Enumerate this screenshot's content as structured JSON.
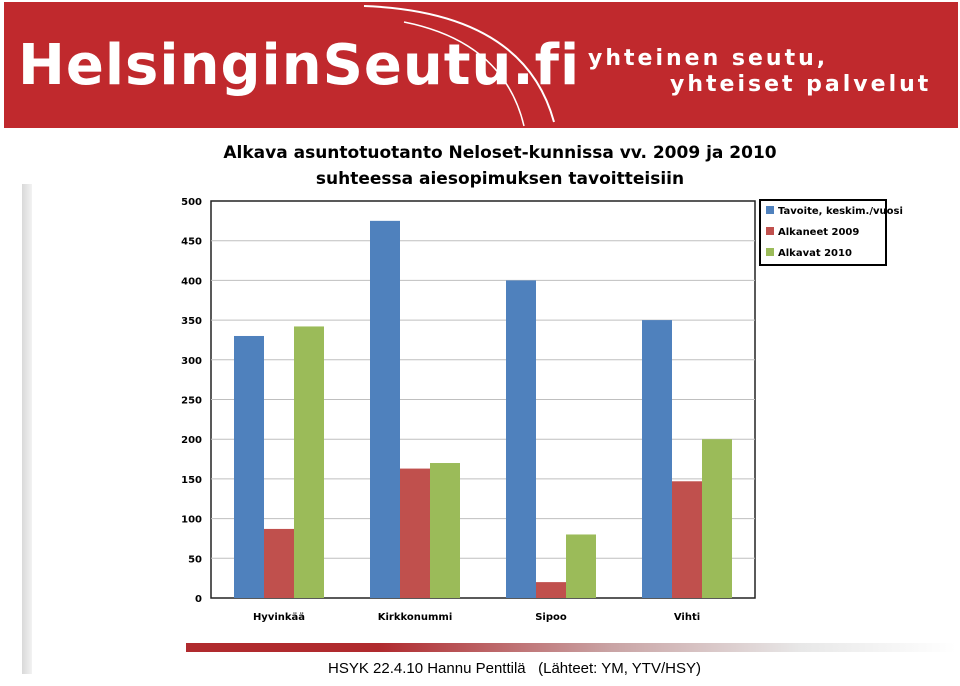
{
  "header": {
    "logo_text": "HelsinginSeutu.fi",
    "slogan_line1": "yhteinen seutu,",
    "slogan_line2": "yhteiset palvelut",
    "colors": {
      "banner": "#c0292d",
      "logo_text": "#ffffff"
    }
  },
  "footer": {
    "text": "HSYK 22.4.10 Hannu Penttilä   (Lähteet: YM, YTV/HSY)"
  },
  "chart_data": {
    "type": "bar",
    "title": "Alkava asuntotuotanto Neloset-kunnissa vv. 2009 ja 2010",
    "subtitle": "suhteessa aiesopimuksen tavoitteisiin",
    "categories": [
      "Hyvinkää",
      "Kirkkonummi",
      "Sipoo",
      "Vihti"
    ],
    "series": [
      {
        "name": "Tavoite, keskim./vuosi",
        "color": "#4f81bd",
        "values": [
          330,
          475,
          400,
          350
        ]
      },
      {
        "name": "Alkaneet 2009",
        "color": "#c0504d",
        "values": [
          87,
          163,
          20,
          147
        ]
      },
      {
        "name": "Alkavat 2010",
        "color": "#9bbb59",
        "values": [
          342,
          170,
          80,
          200
        ]
      }
    ],
    "ylim": [
      0,
      500
    ],
    "yticks": [
      "0",
      "50",
      "100",
      "150",
      "200",
      "250",
      "300",
      "350",
      "400",
      "450",
      "500"
    ],
    "grid": true,
    "legend_position": "top-right"
  }
}
